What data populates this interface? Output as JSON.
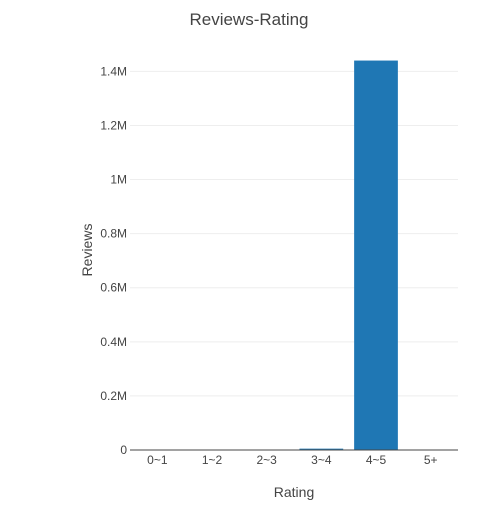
{
  "chart_data": {
    "type": "bar",
    "title": "Reviews-Rating",
    "xlabel": "Rating",
    "ylabel": "Reviews",
    "categories": [
      "0~1",
      "1~2",
      "2~3",
      "3~4",
      "4~5",
      "5+"
    ],
    "values": [
      0,
      0,
      0,
      5000,
      1440000,
      0
    ],
    "ylim": [
      0,
      1516000
    ],
    "yticks": [
      0,
      200000,
      400000,
      600000,
      800000,
      1000000,
      1200000,
      1400000
    ],
    "ytick_labels": [
      "0",
      "0.2M",
      "0.4M",
      "0.6M",
      "0.8M",
      "1M",
      "1.2M",
      "1.4M"
    ],
    "grid": true,
    "colors": {
      "bar": "#1f77b4",
      "title": "#444444",
      "axis_text": "#444444",
      "grid": "#eeeeee",
      "axis_line": "#444444"
    }
  }
}
